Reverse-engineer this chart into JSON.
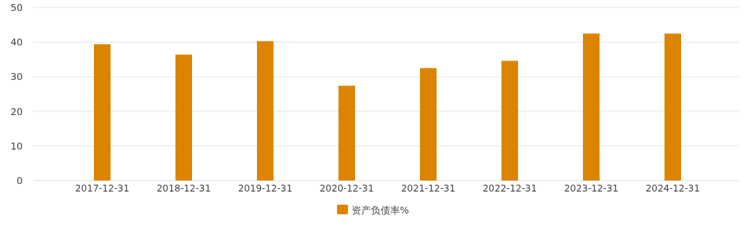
{
  "chart_data": {
    "type": "bar",
    "categories": [
      "2017-12-31",
      "2018-12-31",
      "2019-12-31",
      "2020-12-31",
      "2021-12-31",
      "2022-12-31",
      "2023-12-31",
      "2024-12-31"
    ],
    "series": [
      {
        "name": "资产负债率%",
        "color": "#dc8400",
        "values": [
          39.4,
          36.4,
          40.3,
          27.4,
          32.5,
          34.6,
          42.5,
          42.5
        ]
      }
    ],
    "ylim": [
      0,
      50
    ],
    "yticks": [
      0,
      10,
      20,
      30,
      40,
      50
    ],
    "grid": "y",
    "legend": "bottom"
  }
}
